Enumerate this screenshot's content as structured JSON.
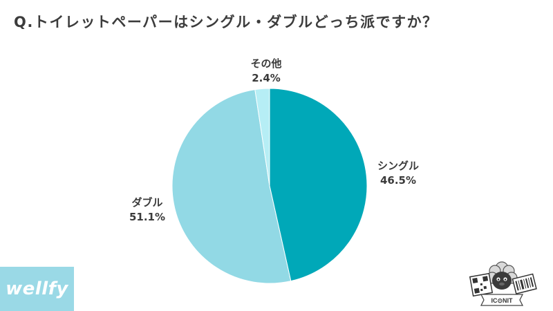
{
  "title": "Q.トイレットペーパーはシングル・ダブルどっち派ですか？",
  "chart_data": {
    "type": "pie",
    "title": "Q.トイレットペーパーはシングル・ダブルどっち派ですか？",
    "categories": [
      "シングル",
      "ダブル",
      "その他"
    ],
    "values": [
      46.5,
      51.1,
      2.4
    ],
    "value_labels": [
      "46.5%",
      "51.1%",
      "2.4%"
    ],
    "colors": [
      "#00a8b8",
      "#92d9e5",
      "#b6eef5"
    ],
    "start": "12 o'clock",
    "direction": "clockwise"
  },
  "logos": {
    "left_brand": "wellfy",
    "right_brand": "IC⊙NIT",
    "left_bg_color": "#9ad9e6"
  }
}
